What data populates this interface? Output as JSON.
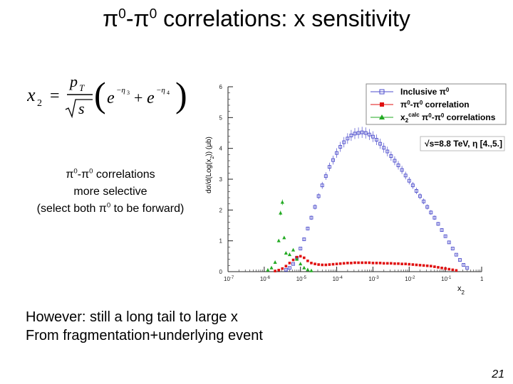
{
  "slide": {
    "title_pi_a": "π",
    "title_sup_a": "0",
    "title_dash": "-",
    "title_pi_b": "π",
    "title_sup_b": "0",
    "title_rest": " correlations: x sensitivity",
    "note_line1_pi_a": "π",
    "note_line1_sup_a": "0",
    "note_line1_dash": "-",
    "note_line1_pi_b": "π",
    "note_line1_sup_b": "0",
    "note_line1_rest": " correlations",
    "note_line2": "more selective",
    "note_line3_a": "(select both ",
    "note_line3_pi": "π",
    "note_line3_sup": "0",
    "note_line3_b": " to be forward)",
    "bottom_line1": "However: still a long tail to large x",
    "bottom_line2": "From fragmentation+underlying event",
    "page_number": "21"
  },
  "formula": {
    "lhs": "x",
    "lhs_sub": "2",
    "eq": "=",
    "num": "p",
    "num_sub": "T",
    "den": "s",
    "e1": "e",
    "e1_exp": "−η",
    "e1_exp_sub": "3",
    "plus": "+",
    "e2": "e",
    "e2_exp": "−η",
    "e2_exp_sub": "4"
  },
  "chart_data": {
    "type": "scatter",
    "x_scale": "log",
    "xlim": [
      1e-07,
      1
    ],
    "ylim": [
      0,
      6
    ],
    "xlabel": "x",
    "xlabel_sub": "2",
    "ylabel": "dσ/d(Log(x",
    "ylabel_sub": "2",
    "ylabel_end": ")) (μb)",
    "x_tick_labels": [
      {
        "x": 1e-07,
        "base": "10",
        "exp": "-7"
      },
      {
        "x": 1e-06,
        "base": "10",
        "exp": "-6"
      },
      {
        "x": 1e-05,
        "base": "10",
        "exp": "-5"
      },
      {
        "x": 0.0001,
        "base": "10",
        "exp": "-4"
      },
      {
        "x": 0.001,
        "base": "10",
        "exp": "-3"
      },
      {
        "x": 0.01,
        "base": "10",
        "exp": "-2"
      },
      {
        "x": 0.1,
        "base": "10",
        "exp": "-1"
      },
      {
        "x": 1,
        "base": "1",
        "exp": ""
      }
    ],
    "y_tick_labels": [
      "0",
      "1",
      "2",
      "3",
      "4",
      "5",
      "6"
    ],
    "legend": {
      "position": "top-right",
      "entries": [
        {
          "label": "Inclusive π",
          "sup": "0"
        },
        {
          "label": "π",
          "sup": "0",
          "mid": "-π",
          "sup2": "0",
          "tail": " correlation"
        },
        {
          "label": "x",
          "sub": "2",
          "sup": "calc",
          "tail": " π",
          "sup2": "0",
          "mid": "-π",
          "sup3": "0",
          "tail2": " correlations"
        }
      ]
    },
    "annotation": {
      "text_a": "√s=8.8 TeV, η [4.,5.]"
    },
    "series": [
      {
        "name": "Inclusive π0",
        "color": "#4d4dcc",
        "marker": "open-square",
        "points": [
          [
            -5.4,
            0.06
          ],
          [
            -5.3,
            0.12
          ],
          [
            -5.2,
            0.25
          ],
          [
            -5.1,
            0.45
          ],
          [
            -5.0,
            0.75
          ],
          [
            -4.9,
            1.05
          ],
          [
            -4.8,
            1.4
          ],
          [
            -4.7,
            1.75
          ],
          [
            -4.6,
            2.1
          ],
          [
            -4.5,
            2.45
          ],
          [
            -4.4,
            2.8
          ],
          [
            -4.3,
            3.1
          ],
          [
            -4.2,
            3.4
          ],
          [
            -4.1,
            3.62
          ],
          [
            -4.0,
            3.85
          ],
          [
            -3.9,
            4.05
          ],
          [
            -3.8,
            4.2
          ],
          [
            -3.7,
            4.32
          ],
          [
            -3.6,
            4.42
          ],
          [
            -3.5,
            4.48
          ],
          [
            -3.4,
            4.5
          ],
          [
            -3.3,
            4.52
          ],
          [
            -3.2,
            4.5
          ],
          [
            -3.1,
            4.45
          ],
          [
            -3.0,
            4.38
          ],
          [
            -2.9,
            4.28
          ],
          [
            -2.8,
            4.15
          ],
          [
            -2.7,
            4.02
          ],
          [
            -2.6,
            3.9
          ],
          [
            -2.5,
            3.75
          ],
          [
            -2.4,
            3.6
          ],
          [
            -2.3,
            3.45
          ],
          [
            -2.2,
            3.3
          ],
          [
            -2.1,
            3.12
          ],
          [
            -2.0,
            2.95
          ],
          [
            -1.9,
            2.8
          ],
          [
            -1.8,
            2.62
          ],
          [
            -1.7,
            2.45
          ],
          [
            -1.6,
            2.28
          ],
          [
            -1.5,
            2.1
          ],
          [
            -1.4,
            1.92
          ],
          [
            -1.3,
            1.75
          ],
          [
            -1.2,
            1.55
          ],
          [
            -1.1,
            1.35
          ],
          [
            -1.0,
            1.15
          ],
          [
            -0.9,
            0.95
          ],
          [
            -0.8,
            0.75
          ],
          [
            -0.7,
            0.55
          ],
          [
            -0.6,
            0.38
          ],
          [
            -0.5,
            0.22
          ],
          [
            -0.4,
            0.12
          ]
        ]
      },
      {
        "name": "π0-π0 correlation",
        "color": "#e01010",
        "marker": "filled-square",
        "points": [
          [
            -5.7,
            0.02
          ],
          [
            -5.6,
            0.05
          ],
          [
            -5.5,
            0.1
          ],
          [
            -5.4,
            0.18
          ],
          [
            -5.3,
            0.28
          ],
          [
            -5.2,
            0.38
          ],
          [
            -5.1,
            0.47
          ],
          [
            -5.0,
            0.5
          ],
          [
            -4.9,
            0.45
          ],
          [
            -4.8,
            0.35
          ],
          [
            -4.7,
            0.28
          ],
          [
            -4.6,
            0.25
          ],
          [
            -4.5,
            0.23
          ],
          [
            -4.4,
            0.22
          ],
          [
            -4.3,
            0.22
          ],
          [
            -4.2,
            0.23
          ],
          [
            -4.1,
            0.24
          ],
          [
            -4.0,
            0.25
          ],
          [
            -3.9,
            0.26
          ],
          [
            -3.8,
            0.27
          ],
          [
            -3.7,
            0.28
          ],
          [
            -3.6,
            0.28
          ],
          [
            -3.5,
            0.29
          ],
          [
            -3.4,
            0.29
          ],
          [
            -3.3,
            0.29
          ],
          [
            -3.2,
            0.29
          ],
          [
            -3.1,
            0.29
          ],
          [
            -3.0,
            0.28
          ],
          [
            -2.9,
            0.28
          ],
          [
            -2.8,
            0.28
          ],
          [
            -2.7,
            0.27
          ],
          [
            -2.6,
            0.27
          ],
          [
            -2.5,
            0.27
          ],
          [
            -2.4,
            0.26
          ],
          [
            -2.3,
            0.26
          ],
          [
            -2.2,
            0.25
          ],
          [
            -2.1,
            0.25
          ],
          [
            -2.0,
            0.24
          ],
          [
            -1.9,
            0.23
          ],
          [
            -1.8,
            0.22
          ],
          [
            -1.7,
            0.21
          ],
          [
            -1.6,
            0.2
          ],
          [
            -1.5,
            0.19
          ],
          [
            -1.4,
            0.18
          ],
          [
            -1.3,
            0.16
          ],
          [
            -1.2,
            0.14
          ],
          [
            -1.1,
            0.12
          ],
          [
            -1.0,
            0.1
          ],
          [
            -0.9,
            0.08
          ],
          [
            -0.8,
            0.06
          ],
          [
            -0.7,
            0.04
          ]
        ]
      },
      {
        "name": "x2calc π0-π0 correlations",
        "color": "#22aa22",
        "marker": "filled-triangle",
        "points": [
          [
            -5.9,
            0.05
          ],
          [
            -5.8,
            0.12
          ],
          [
            -5.7,
            0.3
          ],
          [
            -5.6,
            1.0
          ],
          [
            -5.55,
            1.9
          ],
          [
            -5.5,
            2.25
          ],
          [
            -5.45,
            1.1
          ],
          [
            -5.4,
            0.6
          ],
          [
            -5.3,
            0.55
          ],
          [
            -5.2,
            0.7
          ],
          [
            -5.1,
            0.4
          ],
          [
            -5.0,
            0.25
          ],
          [
            -4.9,
            0.12
          ],
          [
            -4.8,
            0.06
          ],
          [
            -4.7,
            0.03
          ]
        ]
      }
    ]
  }
}
